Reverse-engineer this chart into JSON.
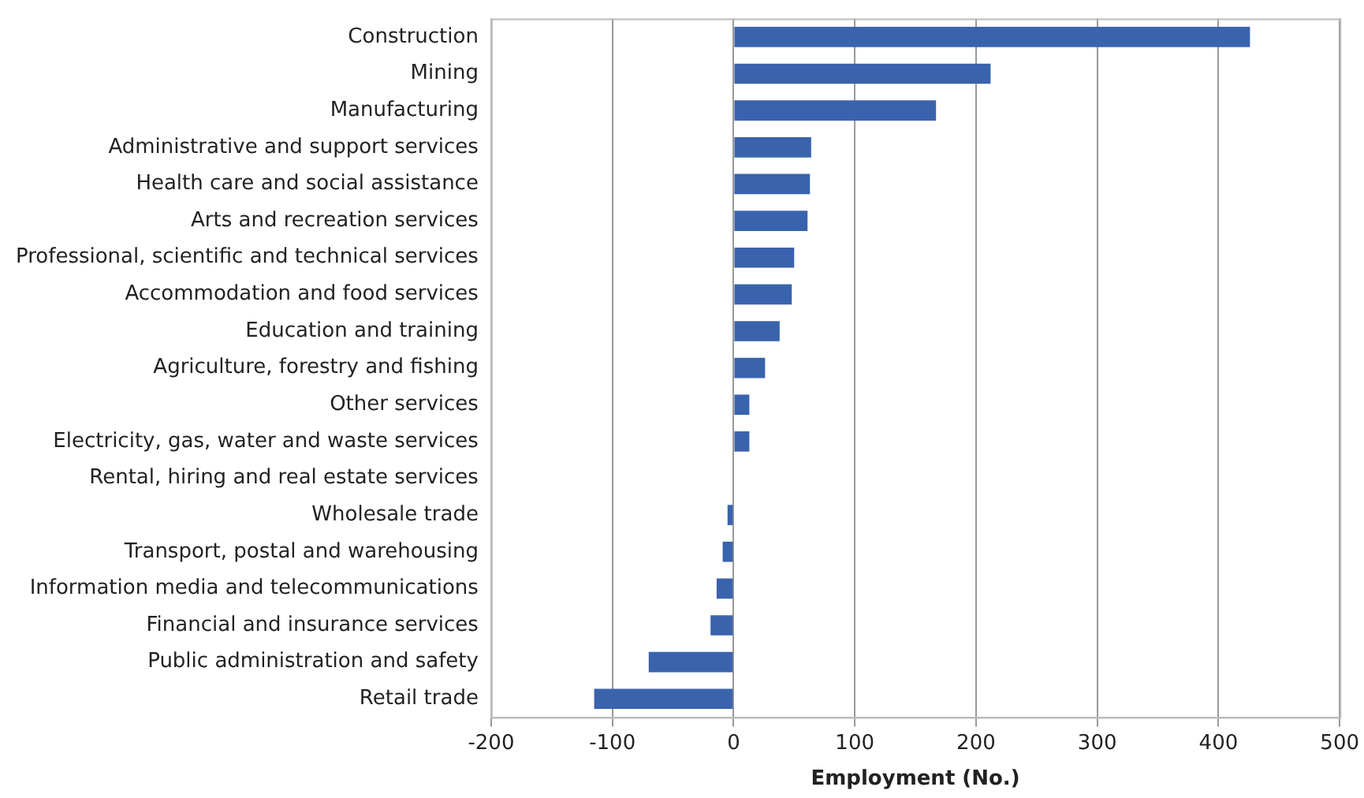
{
  "chart_data": {
    "type": "bar",
    "orientation": "horizontal",
    "xlabel": "Employment (No.)",
    "categories": [
      "Construction",
      "Mining",
      "Manufacturing",
      "Administrative and support services",
      "Health care and social assistance",
      "Arts and recreation services",
      "Professional, scientific and technical services",
      "Accommodation and food services",
      "Education and training",
      "Agriculture, forestry and fishing",
      "Other services",
      "Electricity, gas, water and waste services",
      "Rental, hiring and real estate services",
      "Wholesale trade",
      "Transport, postal and warehousing",
      "Information media and telecommunications",
      "Financial and insurance services",
      "Public administration and safety",
      "Retail trade"
    ],
    "values": [
      426,
      212,
      167,
      64,
      63,
      61,
      50,
      48,
      38,
      26,
      13,
      13,
      0,
      -5,
      -9,
      -14,
      -19,
      -70,
      -115
    ],
    "color": "#3a63ad",
    "xlim": [
      -200,
      500
    ],
    "xticks": [
      -200,
      -100,
      0,
      100,
      200,
      300,
      400,
      500
    ],
    "grid": "x",
    "legend": false
  }
}
